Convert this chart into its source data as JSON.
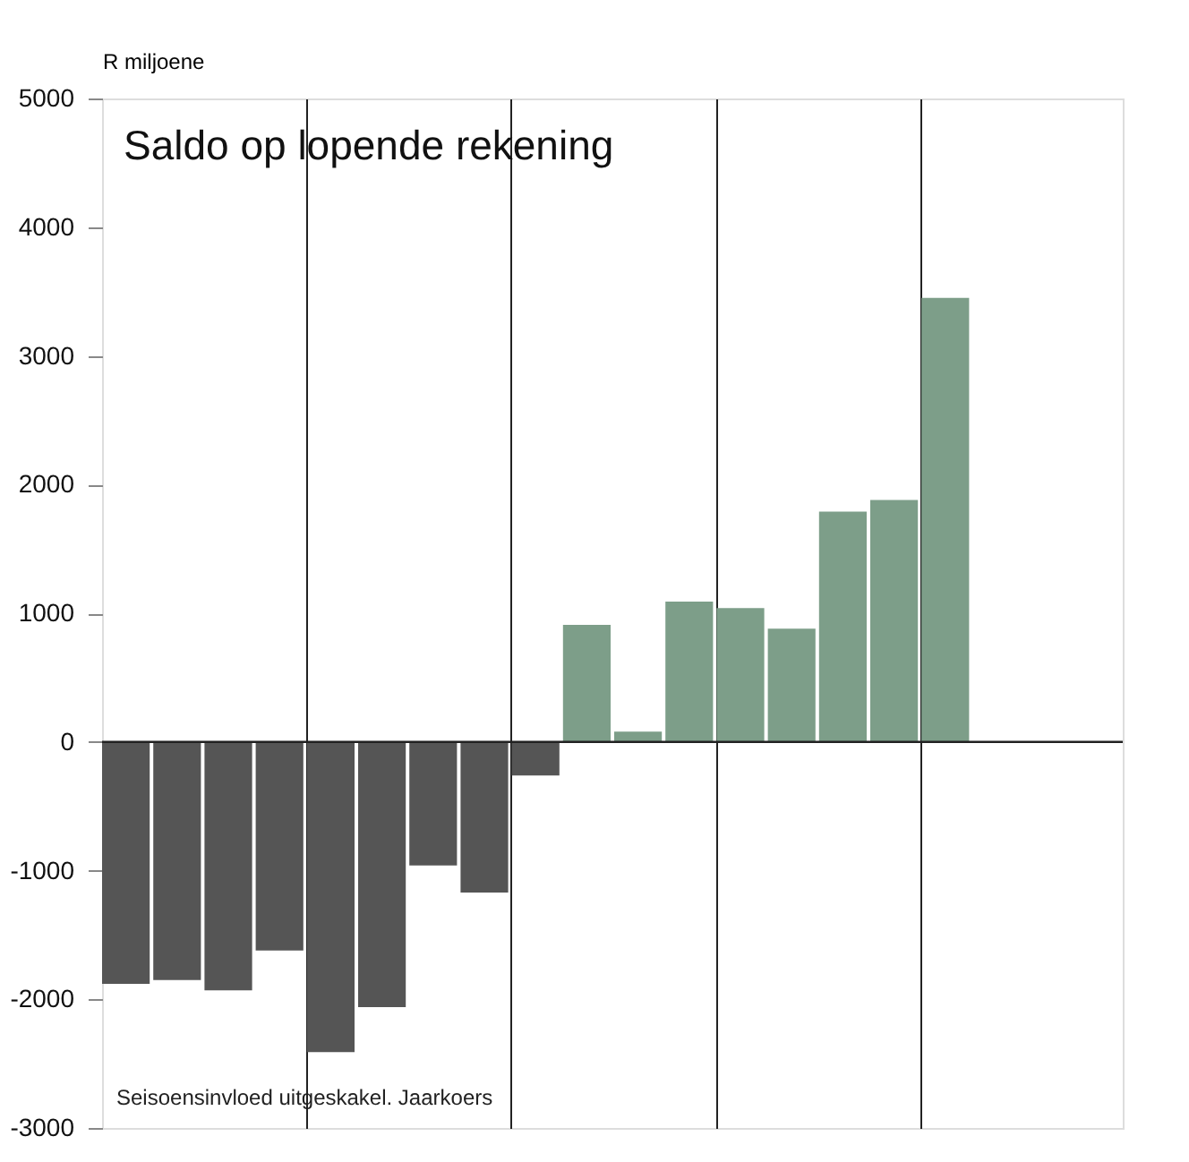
{
  "chart_data": {
    "type": "bar",
    "title": "Saldo op lopende rekening",
    "ylabel": "R miljoene",
    "annotations": [
      "Seisoensinvloed uitgeskakel. Jaarkoers"
    ],
    "categories": [
      null,
      null,
      null,
      null,
      null,
      null,
      null,
      null,
      null,
      null,
      null,
      null,
      null,
      null,
      null,
      null,
      null,
      null,
      null,
      null
    ],
    "values": [
      -1880,
      -1850,
      -1930,
      -1620,
      -2410,
      -2060,
      -960,
      -1170,
      -260,
      910,
      80,
      1090,
      1040,
      880,
      1790,
      1880,
      3450,
      null,
      null,
      null
    ],
    "colors": [
      "#555555",
      "#555555",
      "#555555",
      "#555555",
      "#555555",
      "#555555",
      "#555555",
      "#555555",
      "#555555",
      "#7d9e89",
      "#7d9e89",
      "#7d9e89",
      "#7d9e89",
      "#7d9e89",
      "#7d9e89",
      "#7d9e89",
      "#7d9e89",
      "#7d9e89",
      "#7d9e89",
      "#7d9e89"
    ],
    "ylim": [
      -3000,
      5000
    ],
    "yticks": [
      -3000,
      -2000,
      -1000,
      0,
      1000,
      2000,
      3000,
      4000,
      5000
    ],
    "grid": "x",
    "ref_lines": [
      {
        "axis": "y",
        "value": 0
      }
    ]
  }
}
